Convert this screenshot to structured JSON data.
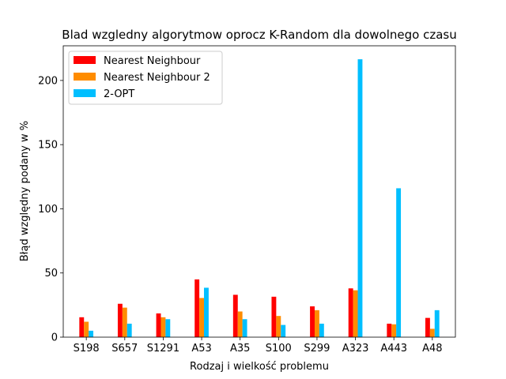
{
  "chart_data": {
    "type": "bar",
    "title": "Blad wzgledny algorytmow oprocz K-Random dla dowolnego czasu",
    "xlabel": "Rodzaj i wielkość problemu",
    "ylabel": "Błąd względny podany w %",
    "categories": [
      "S198",
      "S657",
      "S1291",
      "A53",
      "A35",
      "S100",
      "S299",
      "A323",
      "A443",
      "A48"
    ],
    "ylim": [
      0,
      227
    ],
    "yticks": [
      0,
      50,
      100,
      150,
      200
    ],
    "grid": false,
    "legend_position": "top-left",
    "series": [
      {
        "name": "Nearest Neighbour",
        "color": "#ff0000",
        "values": [
          15.5,
          26,
          18.5,
          45,
          33,
          31.5,
          24,
          38,
          10.5,
          15
        ]
      },
      {
        "name": "Nearest Neighbour 2",
        "color": "#ff8c00",
        "values": [
          12,
          23,
          15.5,
          30.5,
          20,
          16.5,
          21,
          36.5,
          10,
          6.5
        ]
      },
      {
        "name": "2-OPT",
        "color": "#00bfff",
        "values": [
          5,
          10.5,
          14,
          38.5,
          14,
          9.5,
          10.5,
          216.5,
          116,
          21
        ]
      }
    ]
  }
}
